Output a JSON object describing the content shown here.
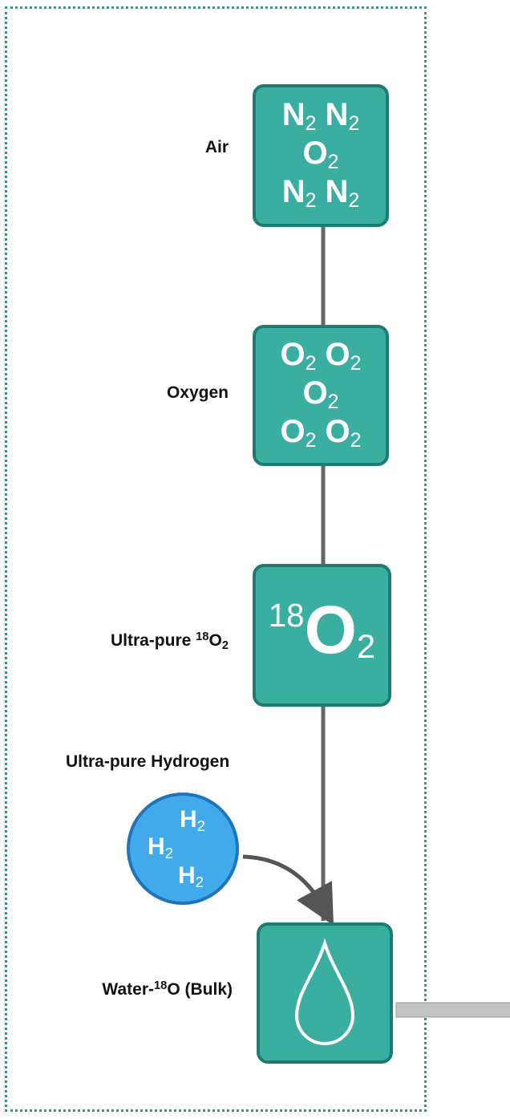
{
  "nodes": [
    {
      "label": [
        {
          "text": "Air"
        }
      ],
      "formula": [
        [
          {
            "text": "N"
          },
          {
            "text": "2",
            "style": "sub"
          },
          {
            "text": " N"
          },
          {
            "text": "2",
            "style": "sub"
          }
        ],
        [
          {
            "text": "O"
          },
          {
            "text": "2",
            "style": "sub"
          }
        ],
        [
          {
            "text": "N"
          },
          {
            "text": "2",
            "style": "sub"
          },
          {
            "text": " N"
          },
          {
            "text": "2",
            "style": "sub"
          }
        ]
      ]
    },
    {
      "label": [
        {
          "text": "Oxygen"
        }
      ],
      "formula": [
        [
          {
            "text": "O"
          },
          {
            "text": "2",
            "style": "sub"
          },
          {
            "text": " O"
          },
          {
            "text": "2",
            "style": "sub"
          }
        ],
        [
          {
            "text": "O"
          },
          {
            "text": "2",
            "style": "sub"
          }
        ],
        [
          {
            "text": "O"
          },
          {
            "text": "2",
            "style": "sub"
          },
          {
            "text": " O"
          },
          {
            "text": "2",
            "style": "sub"
          }
        ]
      ]
    },
    {
      "label": [
        {
          "text": "Ultra-pure "
        },
        {
          "text": "18",
          "style": "sup"
        },
        {
          "text": "O"
        },
        {
          "text": "2",
          "style": "sub"
        }
      ],
      "formula": [
        [
          {
            "text": "18",
            "style": "sup"
          },
          {
            "text": "O"
          },
          {
            "text": "2",
            "style": "sub"
          }
        ]
      ]
    },
    {
      "label": [
        {
          "text": "Water-"
        },
        {
          "text": "18",
          "style": "sup"
        },
        {
          "text": "O (Bulk)"
        }
      ],
      "formula": []
    }
  ],
  "hydrogen": {
    "label": [
      {
        "text": "Ultra-pure Hydrogen"
      }
    ],
    "formula": [
      [
        {
          "text": "H"
        },
        {
          "text": "2",
          "style": "sub"
        }
      ],
      [
        {
          "text": "H"
        },
        {
          "text": "2",
          "style": "sub"
        }
      ],
      [
        {
          "text": "H"
        },
        {
          "text": "2",
          "style": "sub"
        }
      ]
    ]
  }
}
